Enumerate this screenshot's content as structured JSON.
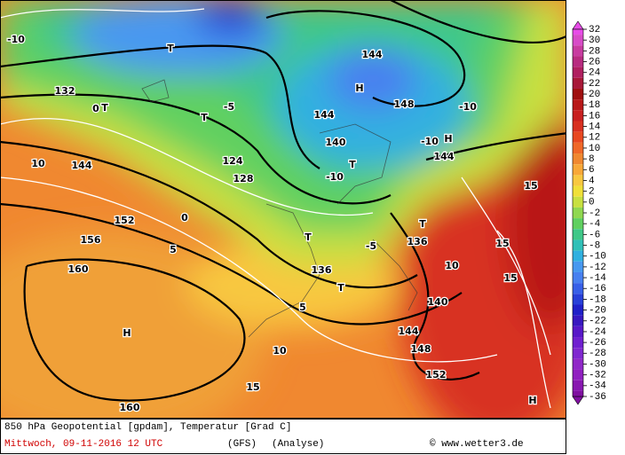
{
  "footer": {
    "line1": "850 hPa Geopotential [gpdam], Temperatur [Grad C]",
    "date": "Mittwoch, 09-11-2016  12 UTC",
    "model": "(GFS)",
    "run": "(Analyse)",
    "credit": "© www.wetter3.de"
  },
  "colorbar": {
    "ticks": [
      32,
      30,
      28,
      26,
      24,
      22,
      20,
      18,
      16,
      14,
      12,
      10,
      8,
      6,
      4,
      2,
      0,
      -2,
      -4,
      -6,
      -8,
      -10,
      -12,
      -14,
      -16,
      -18,
      -20,
      -22,
      -24,
      -26,
      -28,
      -30,
      -32,
      -34,
      -36
    ],
    "colors": [
      "#e84ce8",
      "#d84cc8",
      "#c83ca0",
      "#b82c80",
      "#b02060",
      "#a81838",
      "#a01010",
      "#b81818",
      "#c82020",
      "#d83020",
      "#e84820",
      "#f06828",
      "#f08830",
      "#f8a838",
      "#f8c840",
      "#f0e038",
      "#c8e040",
      "#90d850",
      "#60d060",
      "#40c888",
      "#30c0b8",
      "#30b0e0",
      "#4898f0",
      "#4880f0",
      "#3860e8",
      "#2840d8",
      "#2020c8",
      "#3818c0",
      "#5818c8",
      "#7020d0",
      "#8028d0",
      "#9028c8",
      "#9020c0",
      "#8818b0",
      "#8010a0"
    ]
  },
  "map_labels": [
    "H",
    "H",
    "H",
    "H",
    "T",
    "T",
    "T",
    "T",
    "T",
    "T",
    "T",
    "144",
    "144",
    "144",
    "144",
    "144",
    "136",
    "140",
    "148",
    "152",
    "156",
    "160",
    "132",
    "128",
    "124",
    "-10",
    "-10",
    "-10",
    "-10",
    "-5",
    "-5",
    "0",
    "0",
    "5",
    "5",
    "10",
    "10",
    "10",
    "15",
    "15",
    "15",
    "15",
    "160",
    "148",
    "152",
    "140",
    "136"
  ]
}
